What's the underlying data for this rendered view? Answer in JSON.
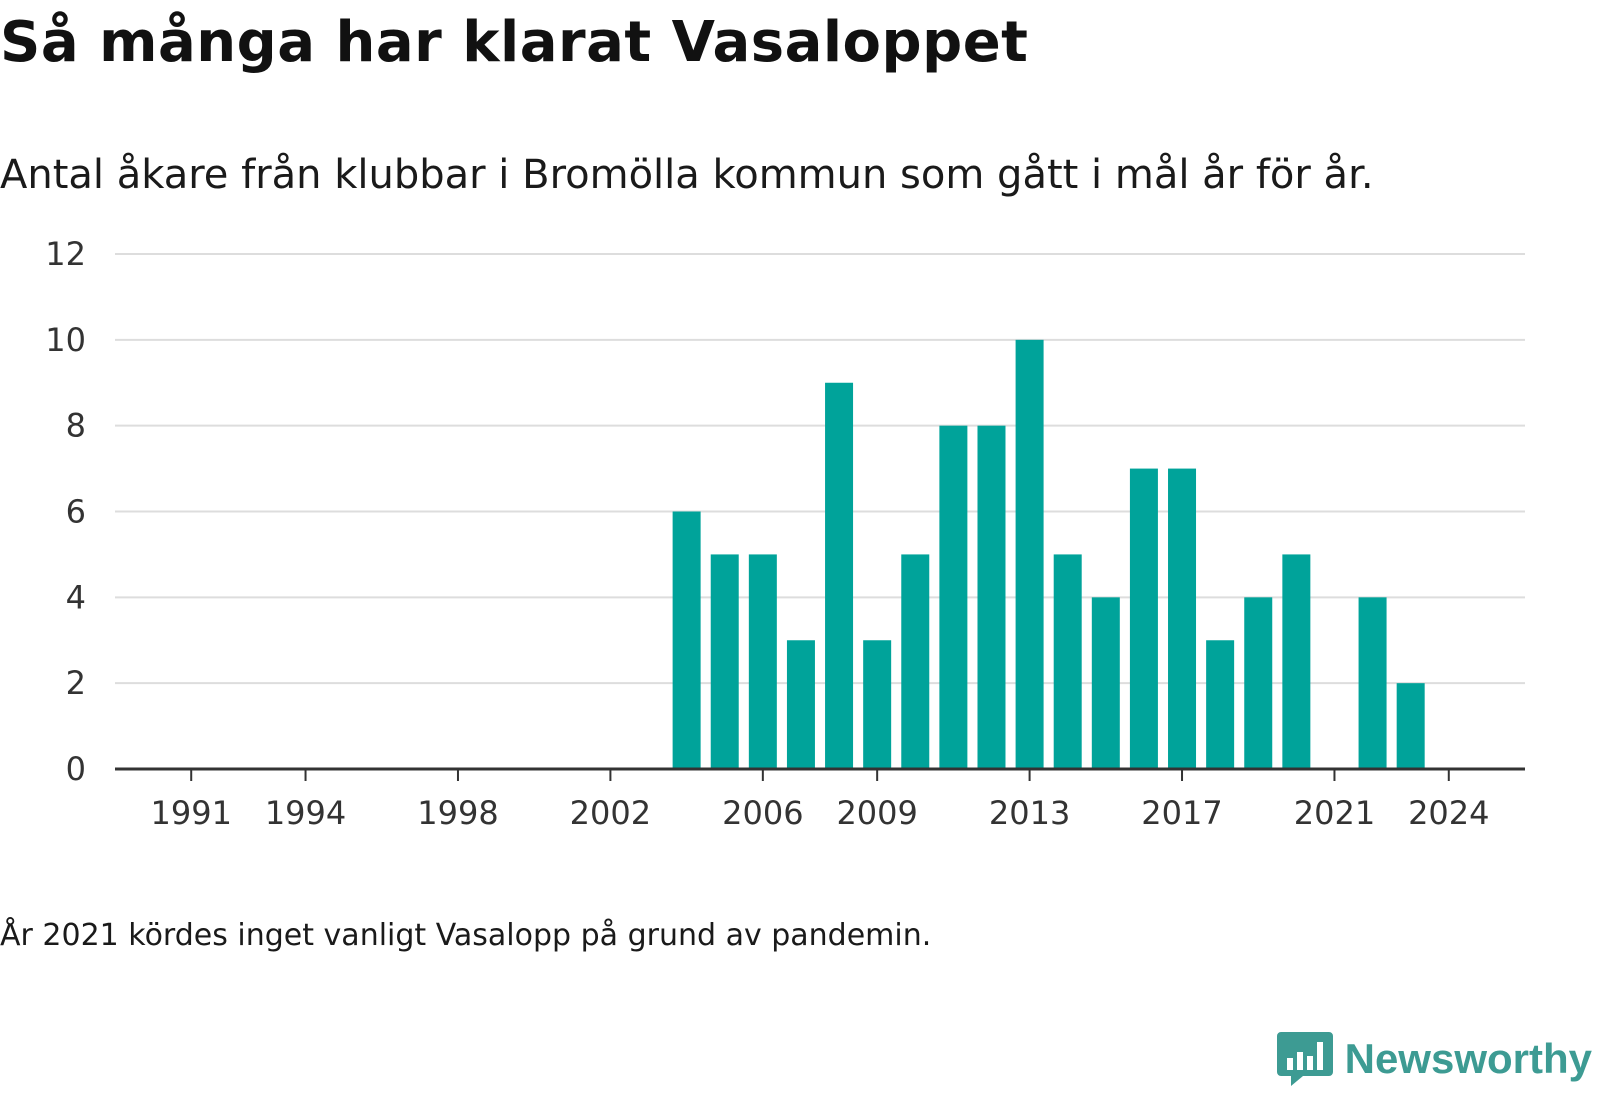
{
  "title": "Så många har klarat Vasaloppet",
  "subtitle": "Antal åkare från klubbar i Bromölla kommun som gått i mål år för år.",
  "note": "År 2021 kördes inget vanligt Vasalopp på grund av pandemin.",
  "brand": {
    "name": "Newsworthy",
    "icon": "bar-chart-speech-bubble-icon"
  },
  "colors": {
    "bar": "#00a39a",
    "grid": "#dddddd",
    "axis": "#333333",
    "brand": "#3d9b93"
  },
  "chart_data": {
    "type": "bar",
    "title": "Så många har klarat Vasaloppet",
    "subtitle": "Antal åkare från klubbar i Bromölla kommun som gått i mål år för år.",
    "xlabel": "",
    "ylabel": "",
    "x_range": [
      1989,
      2026
    ],
    "ylim": [
      0,
      12
    ],
    "y_ticks": [
      0,
      2,
      4,
      6,
      8,
      10,
      12
    ],
    "x_ticks": [
      1991,
      1994,
      1998,
      2002,
      2006,
      2009,
      2013,
      2017,
      2021,
      2024
    ],
    "grid": true,
    "x": [
      2004,
      2005,
      2006,
      2007,
      2008,
      2009,
      2010,
      2011,
      2012,
      2013,
      2014,
      2015,
      2016,
      2017,
      2018,
      2019,
      2020,
      2022,
      2023
    ],
    "values": [
      6,
      5,
      5,
      3,
      9,
      3,
      5,
      8,
      8,
      10,
      5,
      4,
      7,
      7,
      3,
      4,
      5,
      4,
      2
    ]
  }
}
